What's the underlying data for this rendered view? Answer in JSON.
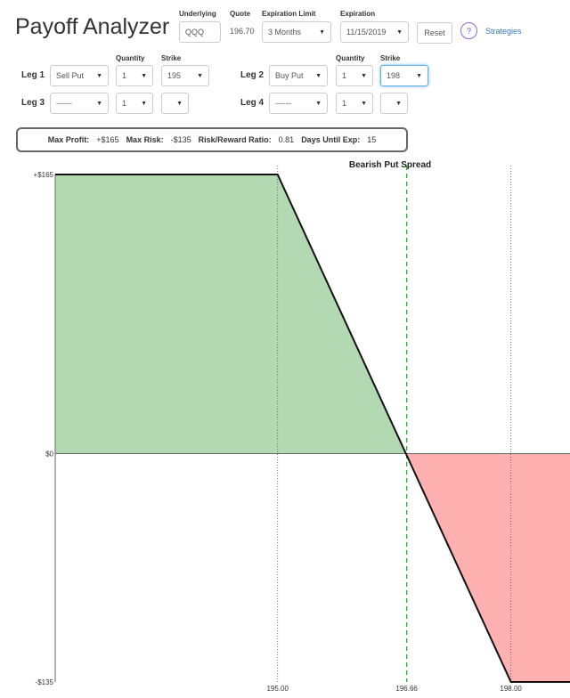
{
  "header": {
    "title": "Payoff Analyzer",
    "underlying_label": "Underlying",
    "underlying_value": "QQQ",
    "quote_label": "Quote",
    "quote_value": "196.70",
    "exp_limit_label": "Expiration Limit",
    "exp_limit_value": "3 Months",
    "expiration_label": "Expiration",
    "expiration_value": "11/15/2019",
    "reset_label": "Reset",
    "help_label": "?",
    "strategies_label": "Strategies"
  },
  "legs": {
    "quantity_label": "Quantity",
    "strike_label": "Strike",
    "items": [
      {
        "label": "Leg 1",
        "type": "Sell Put",
        "qty": "1",
        "strike": "195"
      },
      {
        "label": "Leg 2",
        "type": "Buy Put",
        "qty": "1",
        "strike": "198"
      },
      {
        "label": "Leg 3",
        "type": "------",
        "qty": "1",
        "strike": ""
      },
      {
        "label": "Leg 4",
        "type": "------",
        "qty": "1",
        "strike": ""
      }
    ]
  },
  "summary": {
    "max_profit_label": "Max Profit:",
    "max_profit": "+$165",
    "max_risk_label": "Max Risk:",
    "max_risk": "-$135",
    "rr_label": "Risk/Reward Ratio:",
    "rr": "0.81",
    "days_label": "Days Until Exp:",
    "days": "15"
  },
  "chart_data": {
    "type": "area",
    "title": "Bearish Put Spread",
    "x": [
      192.14,
      195,
      198,
      198.76
    ],
    "y": [
      165,
      165,
      -135,
      -135
    ],
    "xlim": [
      192.14,
      198.76
    ],
    "ylim": [
      -135,
      165
    ],
    "yticks": [
      "+$165",
      "$0",
      "-$135"
    ],
    "ytick_values": [
      165,
      0,
      -135
    ],
    "xticks": [
      "195.00",
      "196.66",
      "198.00"
    ],
    "xtick_values": [
      195,
      196.66,
      198
    ],
    "breakeven": 196.66,
    "colors": {
      "profit": "#b2d9b2",
      "loss": "#ffb0b0",
      "line": "#111111",
      "breakeven": "#22bb22"
    }
  }
}
